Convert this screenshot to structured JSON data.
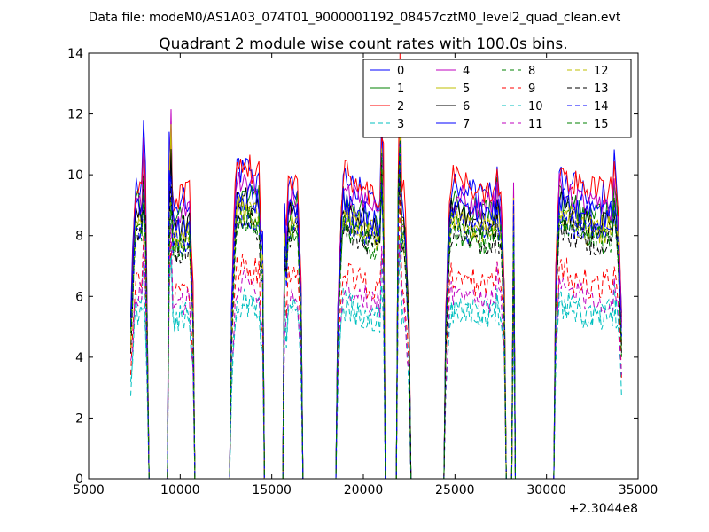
{
  "figure": {
    "suptitle": "Data file: modeM0/AS1A03_074T01_9000001192_08457cztM0_level2_quad_clean.evt"
  },
  "chart_data": {
    "type": "line",
    "title": "Quadrant 2 module wise count rates with 100.0s bins.",
    "xlabel": "",
    "ylabel": "",
    "x_offset_label": "+2.3044e8",
    "xlim": [
      5000,
      35000
    ],
    "ylim": [
      0,
      14
    ],
    "xticks": [
      5000,
      10000,
      15000,
      20000,
      25000,
      30000,
      35000
    ],
    "yticks": [
      0,
      2,
      4,
      6,
      8,
      10,
      12,
      14
    ],
    "grid": false,
    "legend_placement": "top-right",
    "segments": [
      {
        "start": 7300,
        "end": 8200,
        "flare": [
          8050,
          0.3
        ]
      },
      {
        "start": 9350,
        "end": 10750,
        "flare": [
          9450,
          0.5
        ]
      },
      {
        "start": 12800,
        "end": 14550,
        "flare": [
          14500,
          0.2
        ]
      },
      {
        "start": 15650,
        "end": 16650,
        "flare": [
          15700,
          0.35
        ]
      },
      {
        "start": 18600,
        "end": 21150,
        "flare": [
          21050,
          0.45
        ]
      },
      {
        "start": 21850,
        "end": 22500,
        "flare": [
          21950,
          0.55
        ]
      },
      {
        "start": 24500,
        "end": 27750,
        "flare": [
          27300,
          0.1
        ]
      },
      {
        "start": 28150,
        "end": 28250,
        "flare": [
          28200,
          0.4
        ]
      },
      {
        "start": 30450,
        "end": 34100,
        "flare": [
          33700,
          0.1
        ]
      }
    ],
    "series": [
      {
        "name": "0",
        "color": "#0000ff",
        "dash": "solid",
        "level": 9.6
      },
      {
        "name": "1",
        "color": "#008000",
        "dash": "solid",
        "level": 9.0
      },
      {
        "name": "2",
        "color": "#ff0000",
        "dash": "solid",
        "level": 9.8
      },
      {
        "name": "3",
        "color": "#00bfbf",
        "dash": "dashed",
        "level": 5.6
      },
      {
        "name": "4",
        "color": "#bf00bf",
        "dash": "solid",
        "level": 9.2
      },
      {
        "name": "5",
        "color": "#bfbf00",
        "dash": "solid",
        "level": 8.5
      },
      {
        "name": "6",
        "color": "#000000",
        "dash": "solid",
        "level": 8.7
      },
      {
        "name": "7",
        "color": "#0000ff",
        "dash": "solid",
        "level": 8.9
      },
      {
        "name": "8",
        "color": "#008000",
        "dash": "dashed",
        "level": 8.2
      },
      {
        "name": "9",
        "color": "#ff0000",
        "dash": "dashed",
        "level": 6.6
      },
      {
        "name": "10",
        "color": "#00bfbf",
        "dash": "dashed",
        "level": 5.5
      },
      {
        "name": "11",
        "color": "#bf00bf",
        "dash": "dashed",
        "level": 6.1
      },
      {
        "name": "12",
        "color": "#bfbf00",
        "dash": "dashed",
        "level": 8.4
      },
      {
        "name": "13",
        "color": "#000000",
        "dash": "dashed",
        "level": 8.0
      },
      {
        "name": "14",
        "color": "#0000ff",
        "dash": "dashed",
        "level": 8.3
      },
      {
        "name": "15",
        "color": "#008000",
        "dash": "dashed",
        "level": 8.1
      }
    ]
  }
}
